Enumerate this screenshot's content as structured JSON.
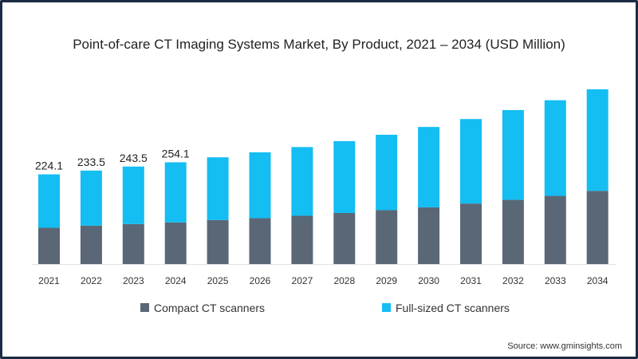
{
  "chart_data": {
    "type": "bar",
    "stacked": true,
    "title": "Point-of-care CT Imaging Systems Market, By Product, 2021 – 2034 (USD Million)",
    "xlabel": "",
    "ylabel": "",
    "ylim": [
      0,
      450
    ],
    "grid": false,
    "legend_position": "bottom",
    "categories": [
      "2021",
      "2022",
      "2023",
      "2024",
      "2025",
      "2026",
      "2027",
      "2028",
      "2029",
      "2030",
      "2031",
      "2032",
      "2033",
      "2034"
    ],
    "series": [
      {
        "name": "Compact CT scanners",
        "color": "#5a6776",
        "values": [
          91.2,
          96.5,
          100.5,
          104.5,
          110.4,
          115.0,
          121.0,
          128.0,
          135.0,
          142.0,
          151.5,
          160.6,
          170.5,
          183.0
        ]
      },
      {
        "name": "Full-sized CT scanners",
        "color": "#14bdf2",
        "values": [
          132.9,
          137.0,
          143.0,
          149.6,
          156.1,
          164.0,
          171.0,
          178.8,
          187.6,
          200.0,
          210.2,
          223.4,
          238.0,
          252.7
        ]
      }
    ],
    "data_labels": [
      {
        "category": "2021",
        "text": "224.1"
      },
      {
        "category": "2022",
        "text": "233.5"
      },
      {
        "category": "2023",
        "text": "243.5"
      },
      {
        "category": "2024",
        "text": "254.1"
      }
    ],
    "source": "Source: www.gminsights.com"
  }
}
